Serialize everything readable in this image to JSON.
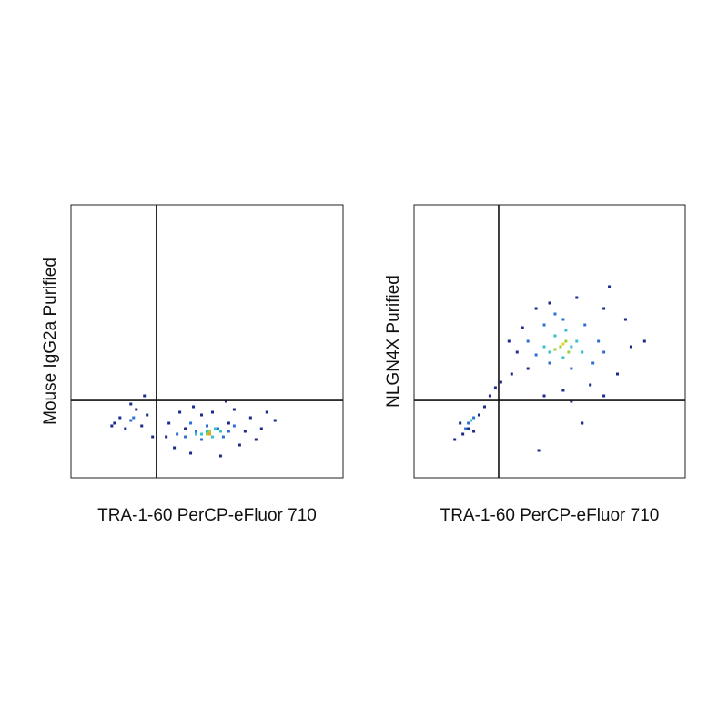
{
  "chart_data": [
    {
      "type": "scatter",
      "x_label": "TRA-1-60 PerCP-eFluor 710",
      "y_label": "Mouse IgG2a Purified",
      "xlim": [
        0,
        100
      ],
      "ylim": [
        0,
        100
      ],
      "gate_x": 31.4,
      "gate_y": 28.3,
      "series": [
        {
          "color": "#1c2a8c",
          "x": [
            18,
            20,
            24,
            16,
            26,
            22,
            28,
            30,
            15,
            27,
            36,
            40,
            45,
            60,
            66,
            72,
            70,
            38,
            44,
            55,
            62,
            48,
            58,
            35,
            68,
            52,
            75,
            42,
            64,
            57
          ],
          "values": [
            22,
            18,
            25,
            20,
            19,
            27,
            23,
            15,
            19,
            30,
            20,
            24,
            26,
            25,
            22,
            24,
            18,
            11,
            9,
            8,
            12,
            23,
            20,
            15,
            14,
            24,
            21,
            18,
            17,
            28
          ]
        },
        {
          "color": "#2d6fd6",
          "x": [
            22,
            23,
            42,
            46,
            50,
            54,
            56,
            48,
            60,
            44,
            39,
            58
          ],
          "values": [
            21,
            22,
            15,
            17,
            19,
            18,
            15,
            14,
            19,
            20,
            16,
            17
          ]
        },
        {
          "color": "#35c0d0",
          "x": [
            48,
            50,
            52,
            53,
            46,
            55
          ],
          "values": [
            16,
            17,
            15,
            18,
            16,
            17
          ]
        },
        {
          "color": "#9ad03a",
          "x": [
            50,
            51
          ],
          "values": [
            16,
            17
          ]
        },
        {
          "color": "#e8a020",
          "x": [
            51
          ],
          "values": [
            16
          ]
        }
      ]
    },
    {
      "type": "scatter",
      "x_label": "TRA-1-60 PerCP-eFluor 710",
      "y_label": "NLGN4X Purified",
      "xlim": [
        0,
        100
      ],
      "ylim": [
        0,
        100
      ],
      "gate_x": 31.2,
      "gate_y": 28.3,
      "series": [
        {
          "color": "#1c2a8c",
          "x": [
            15,
            18,
            20,
            17,
            24,
            26,
            28,
            22,
            30,
            32,
            36,
            40,
            45,
            50,
            60,
            70,
            78,
            80,
            75,
            65,
            55,
            42,
            38,
            48,
            58,
            70,
            72,
            35,
            46,
            85,
            62
          ],
          "values": [
            14,
            16,
            18,
            20,
            23,
            26,
            30,
            17,
            33,
            35,
            38,
            55,
            62,
            64,
            66,
            62,
            58,
            48,
            38,
            34,
            32,
            40,
            46,
            30,
            28,
            30,
            70,
            50,
            10,
            50,
            20
          ]
        },
        {
          "color": "#2d6fd6",
          "x": [
            20,
            22,
            19,
            42,
            48,
            55,
            63,
            68,
            66,
            58,
            50,
            45,
            70,
            52
          ],
          "values": [
            20,
            22,
            18,
            50,
            56,
            58,
            56,
            50,
            42,
            40,
            42,
            45,
            46,
            60
          ]
        },
        {
          "color": "#35c0d0",
          "x": [
            21,
            48,
            52,
            56,
            60,
            62,
            55,
            50,
            58
          ],
          "values": [
            21,
            48,
            52,
            54,
            50,
            46,
            44,
            46,
            48
          ]
        },
        {
          "color": "#9ad03a",
          "x": [
            54,
            56,
            52,
            57
          ],
          "values": [
            48,
            50,
            47,
            46
          ]
        },
        {
          "color": "#e8d020",
          "x": [
            55
          ],
          "values": [
            49
          ]
        }
      ]
    }
  ]
}
